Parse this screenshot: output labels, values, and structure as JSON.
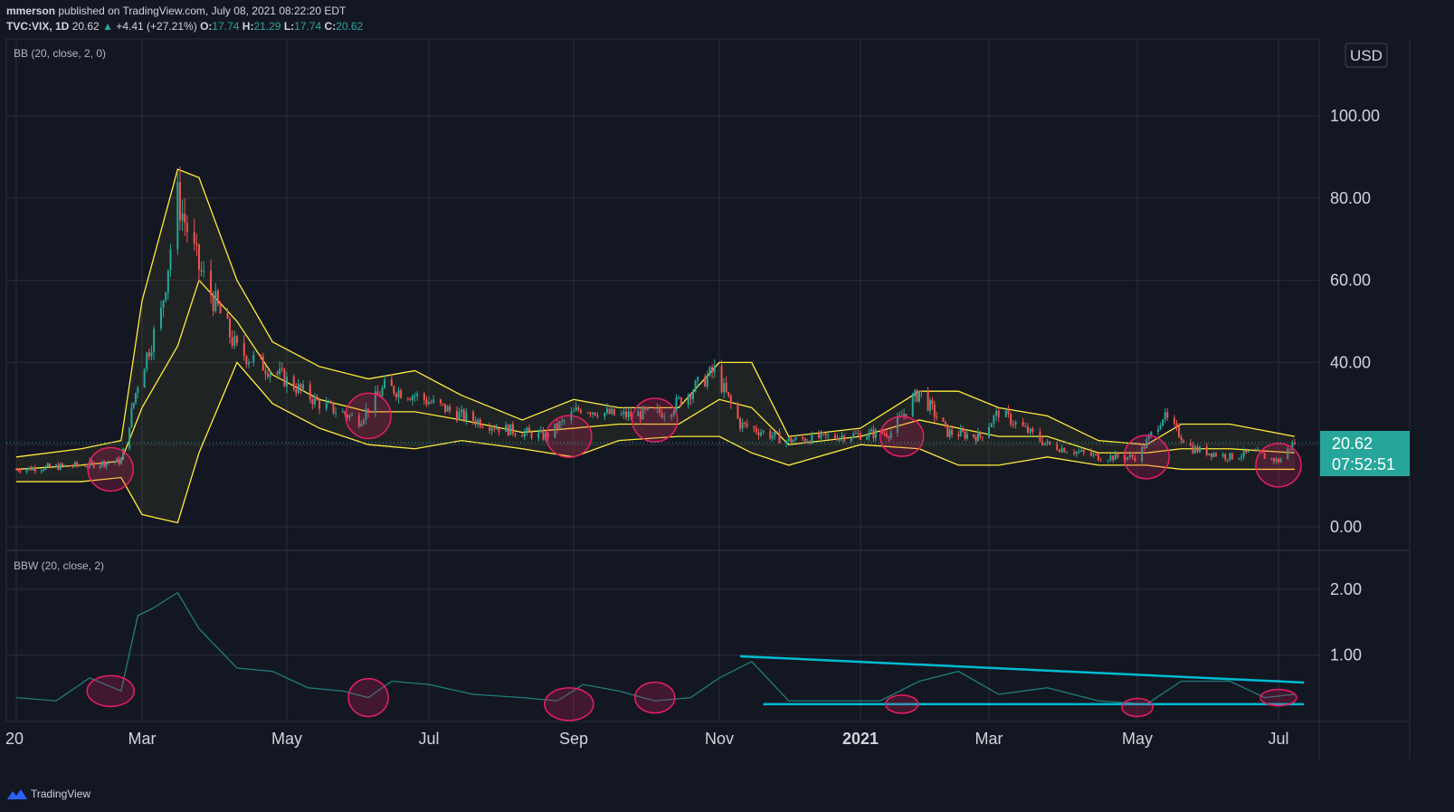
{
  "header": {
    "publisher": "mmerson",
    "published_text": "published on TradingView.com, July 08, 2021 08:22:20 EDT",
    "symbol": "TVC:VIX, 1D",
    "last": "20.62",
    "change_arrow": "▲",
    "change": "+4.41 (+27.21%)",
    "o_label": "O:",
    "o": "17.74",
    "h_label": "H:",
    "h": "21.29",
    "l_label": "L:",
    "l": "17.74",
    "c_label": "C:",
    "c": "20.62"
  },
  "currency": "USD",
  "price_tag": {
    "price": "20.62",
    "countdown": "07:52:51"
  },
  "footer": {
    "brand": "TradingView"
  },
  "colors": {
    "background": "#131722",
    "grid": "#2a2e39",
    "candle_up": "#26a69a",
    "candle_down": "#ef5350",
    "bands": "#ffeb3b",
    "bbw_line": "#1e7f7a",
    "trendline": "#00bcd4",
    "circles": "#e91e63",
    "price_tag": "#26a69a"
  },
  "chart_data": [
    {
      "type": "candlestick",
      "title": "TVC:VIX, 1D",
      "indicator_label": "BB (20, close, 2, 0)",
      "y_ticks": [
        "100.00",
        "80.00",
        "60.00",
        "40.00",
        "0.00"
      ],
      "ylim": [
        0,
        110
      ],
      "last_price": 20.62,
      "x_ticks": [
        "20",
        "Mar",
        "May",
        "Jul",
        "Sep",
        "Nov",
        "2021",
        "Mar",
        "May",
        "Jul"
      ],
      "x_tick_dates": [
        "2020-01",
        "2020-03",
        "2020-05",
        "2020-07",
        "2020-09",
        "2020-11",
        "2021-01",
        "2021-03",
        "2021-05",
        "2021-07"
      ],
      "grid": true,
      "series": [
        {
          "name": "close",
          "x": [
            "2020-01-01",
            "2020-02-01",
            "2020-02-20",
            "2020-02-28",
            "2020-03-09",
            "2020-03-16",
            "2020-03-25",
            "2020-04-10",
            "2020-04-25",
            "2020-05-15",
            "2020-06-01",
            "2020-06-12",
            "2020-06-25",
            "2020-07-15",
            "2020-08-01",
            "2020-08-20",
            "2020-09-04",
            "2020-09-20",
            "2020-10-10",
            "2020-10-30",
            "2020-11-10",
            "2020-11-30",
            "2020-12-20",
            "2021-01-15",
            "2021-01-28",
            "2021-02-10",
            "2021-02-25",
            "2021-03-05",
            "2021-03-25",
            "2021-04-15",
            "2021-05-01",
            "2021-05-12",
            "2021-05-25",
            "2021-06-10",
            "2021-06-20",
            "2021-07-01",
            "2021-07-08"
          ],
          "y": [
            14,
            15,
            16,
            35,
            52,
            80,
            63,
            43,
            38,
            30,
            26,
            34,
            32,
            27,
            24,
            22,
            29,
            27,
            28,
            38,
            25,
            21,
            22,
            23,
            33,
            23,
            22,
            28,
            20,
            17,
            17,
            27,
            19,
            17,
            18,
            16,
            20.62
          ]
        },
        {
          "name": "upper band",
          "x": [
            "2020-01-01",
            "2020-02-01",
            "2020-02-20",
            "2020-03-01",
            "2020-03-16",
            "2020-03-25",
            "2020-04-10",
            "2020-04-25",
            "2020-05-15",
            "2020-06-05",
            "2020-06-25",
            "2020-07-15",
            "2020-08-10",
            "2020-09-01",
            "2020-09-20",
            "2020-10-15",
            "2020-11-01",
            "2020-11-15",
            "2020-12-01",
            "2021-01-01",
            "2021-01-28",
            "2021-02-15",
            "2021-03-05",
            "2021-03-25",
            "2021-04-15",
            "2021-05-05",
            "2021-05-20",
            "2021-06-10",
            "2021-07-08"
          ],
          "y": [
            17,
            19,
            21,
            55,
            87,
            85,
            60,
            45,
            39,
            36,
            38,
            32,
            26,
            31,
            29,
            29,
            40,
            40,
            22,
            24,
            33,
            33,
            29,
            27,
            21,
            20,
            25,
            25,
            22
          ]
        },
        {
          "name": "lower band",
          "x": [
            "2020-01-01",
            "2020-02-01",
            "2020-02-20",
            "2020-03-01",
            "2020-03-16",
            "2020-03-25",
            "2020-04-10",
            "2020-04-25",
            "2020-05-15",
            "2020-06-05",
            "2020-06-25",
            "2020-07-15",
            "2020-08-10",
            "2020-09-01",
            "2020-09-20",
            "2020-10-15",
            "2020-11-01",
            "2020-11-15",
            "2020-12-01",
            "2021-01-01",
            "2021-01-28",
            "2021-02-15",
            "2021-03-05",
            "2021-03-25",
            "2021-04-15",
            "2021-05-05",
            "2021-05-20",
            "2021-06-10",
            "2021-07-08"
          ],
          "y": [
            11,
            11,
            12,
            3,
            1,
            18,
            40,
            30,
            24,
            20,
            19,
            21,
            19,
            17,
            21,
            22,
            22,
            18,
            15,
            20,
            19,
            15,
            15,
            17,
            15,
            15,
            14,
            14,
            14
          ]
        },
        {
          "name": "basis",
          "x": [
            "2020-01-01",
            "2020-02-01",
            "2020-02-20",
            "2020-03-01",
            "2020-03-16",
            "2020-03-25",
            "2020-04-10",
            "2020-04-25",
            "2020-05-15",
            "2020-06-05",
            "2020-06-25",
            "2020-07-15",
            "2020-08-10",
            "2020-09-01",
            "2020-09-20",
            "2020-10-15",
            "2020-11-01",
            "2020-11-15",
            "2020-12-01",
            "2021-01-01",
            "2021-01-28",
            "2021-02-15",
            "2021-03-05",
            "2021-03-25",
            "2021-04-15",
            "2021-05-05",
            "2021-05-20",
            "2021-06-10",
            "2021-07-08"
          ],
          "y": [
            14,
            15,
            16,
            29,
            44,
            60,
            50,
            37,
            31,
            28,
            28,
            26,
            23,
            24,
            25,
            25,
            31,
            29,
            20,
            22,
            26,
            24,
            22,
            22,
            18,
            18,
            19,
            19,
            18
          ]
        }
      ]
    },
    {
      "type": "line",
      "indicator_label": "BBW (20, close, 2)",
      "y_ticks": [
        "2.00",
        "1.00"
      ],
      "ylim": [
        0,
        2.2
      ],
      "grid": true,
      "series": [
        {
          "name": "BBW",
          "x": [
            "2020-01-01",
            "2020-01-20",
            "2020-02-05",
            "2020-02-20",
            "2020-02-28",
            "2020-03-05",
            "2020-03-16",
            "2020-03-25",
            "2020-04-10",
            "2020-04-25",
            "2020-05-10",
            "2020-05-25",
            "2020-06-05",
            "2020-06-15",
            "2020-07-01",
            "2020-07-20",
            "2020-08-10",
            "2020-08-25",
            "2020-09-05",
            "2020-09-20",
            "2020-10-05",
            "2020-10-20",
            "2020-11-01",
            "2020-11-15",
            "2020-12-01",
            "2020-12-20",
            "2021-01-10",
            "2021-01-28",
            "2021-02-15",
            "2021-03-05",
            "2021-03-25",
            "2021-04-15",
            "2021-05-05",
            "2021-05-20",
            "2021-06-10",
            "2021-06-25",
            "2021-07-08"
          ],
          "y": [
            0.35,
            0.3,
            0.65,
            0.45,
            1.6,
            1.7,
            1.95,
            1.4,
            0.8,
            0.75,
            0.5,
            0.45,
            0.35,
            0.6,
            0.55,
            0.4,
            0.35,
            0.3,
            0.55,
            0.45,
            0.3,
            0.35,
            0.65,
            0.9,
            0.3,
            0.3,
            0.3,
            0.6,
            0.75,
            0.4,
            0.5,
            0.3,
            0.25,
            0.6,
            0.6,
            0.35,
            0.4
          ]
        }
      ],
      "annotations": [
        {
          "type": "trendline",
          "from": [
            "2020-11-10",
            0.98
          ],
          "to": [
            "2021-07-12",
            0.58
          ]
        },
        {
          "type": "trendline",
          "from": [
            "2020-11-20",
            0.25
          ],
          "to": [
            "2021-07-12",
            0.25
          ]
        }
      ]
    }
  ]
}
